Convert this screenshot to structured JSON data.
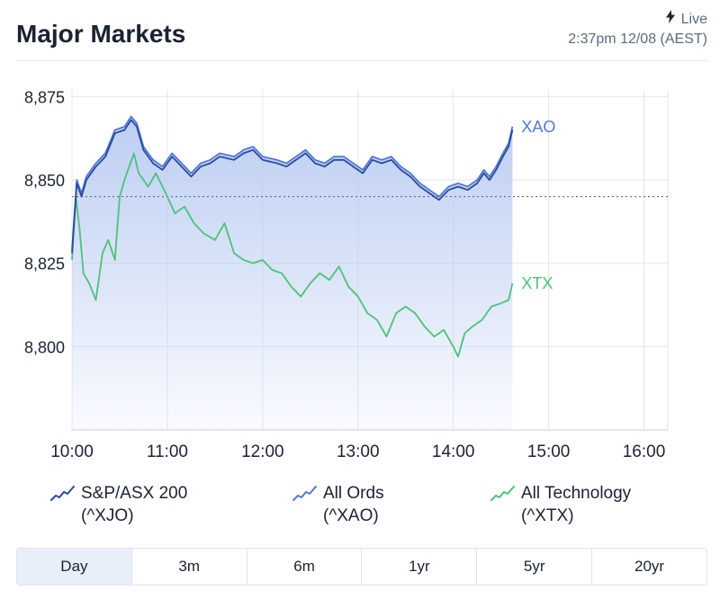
{
  "header": {
    "title": "Major Markets",
    "live_label": "Live",
    "timestamp": "2:37pm 12/08 (AEST)"
  },
  "colors": {
    "xjo": "#2a4a9a",
    "xao": "#4f78d8",
    "xtx": "#4cc27a",
    "fill_top": "#b9cbf2",
    "grid": "#e3e6eb"
  },
  "legend": [
    {
      "name": "S&P/ASX 200",
      "code": "(^XJO)",
      "icon": "line-chart-icon",
      "color_key": "xjo"
    },
    {
      "name": "All Ords",
      "code": "(^XAO)",
      "icon": "line-chart-icon",
      "color_key": "xao"
    },
    {
      "name": "All Technology",
      "code": "(^XTX)",
      "icon": "line-chart-icon",
      "color_key": "xtx"
    }
  ],
  "tabs": [
    {
      "label": "Day",
      "active": true
    },
    {
      "label": "3m",
      "active": false
    },
    {
      "label": "6m",
      "active": false
    },
    {
      "label": "1yr",
      "active": false
    },
    {
      "label": "5yr",
      "active": false
    },
    {
      "label": "20yr",
      "active": false
    }
  ],
  "chart_data": {
    "type": "line",
    "x_ticks": [
      "10:00",
      "11:00",
      "12:00",
      "13:00",
      "14:00",
      "15:00",
      "16:00"
    ],
    "xlim": [
      10.0,
      16.25
    ],
    "y_ticks": [
      "8,875",
      "8,850",
      "8,825",
      "8,800"
    ],
    "ylim": [
      8775,
      8877
    ],
    "reference_line": 8845,
    "grid": true,
    "series": [
      {
        "name": "XAO",
        "color_key": "xao",
        "end_label": "XAO",
        "filled": true,
        "points": [
          [
            10.0,
            8829
          ],
          [
            10.05,
            8850
          ],
          [
            10.1,
            8846
          ],
          [
            10.15,
            8851
          ],
          [
            10.25,
            8855
          ],
          [
            10.35,
            8858
          ],
          [
            10.45,
            8865
          ],
          [
            10.55,
            8866
          ],
          [
            10.62,
            8869
          ],
          [
            10.68,
            8867
          ],
          [
            10.75,
            8860
          ],
          [
            10.85,
            8856
          ],
          [
            10.95,
            8854
          ],
          [
            11.05,
            8858
          ],
          [
            11.15,
            8855
          ],
          [
            11.25,
            8852
          ],
          [
            11.35,
            8855
          ],
          [
            11.45,
            8856
          ],
          [
            11.55,
            8858
          ],
          [
            11.7,
            8857
          ],
          [
            11.8,
            8859
          ],
          [
            11.9,
            8860
          ],
          [
            12.0,
            8857
          ],
          [
            12.15,
            8856
          ],
          [
            12.25,
            8855
          ],
          [
            12.35,
            8857
          ],
          [
            12.45,
            8859
          ],
          [
            12.55,
            8856
          ],
          [
            12.65,
            8855
          ],
          [
            12.75,
            8857
          ],
          [
            12.85,
            8857
          ],
          [
            12.95,
            8855
          ],
          [
            13.05,
            8853
          ],
          [
            13.15,
            8857
          ],
          [
            13.25,
            8856
          ],
          [
            13.35,
            8857
          ],
          [
            13.45,
            8854
          ],
          [
            13.55,
            8852
          ],
          [
            13.65,
            8849
          ],
          [
            13.75,
            8847
          ],
          [
            13.85,
            8845
          ],
          [
            13.95,
            8848
          ],
          [
            14.05,
            8849
          ],
          [
            14.15,
            8848
          ],
          [
            14.25,
            8850
          ],
          [
            14.32,
            8853
          ],
          [
            14.38,
            8851
          ],
          [
            14.45,
            8854
          ],
          [
            14.52,
            8858
          ],
          [
            14.58,
            8861
          ],
          [
            14.62,
            8866
          ]
        ]
      },
      {
        "name": "XJO",
        "color_key": "xjo",
        "end_label": "",
        "filled": false,
        "points": [
          [
            10.0,
            8828
          ],
          [
            10.05,
            8849
          ],
          [
            10.1,
            8845
          ],
          [
            10.15,
            8850
          ],
          [
            10.25,
            8854
          ],
          [
            10.35,
            8857
          ],
          [
            10.45,
            8864
          ],
          [
            10.55,
            8865
          ],
          [
            10.62,
            8868
          ],
          [
            10.68,
            8866
          ],
          [
            10.75,
            8859
          ],
          [
            10.85,
            8855
          ],
          [
            10.95,
            8853
          ],
          [
            11.05,
            8857
          ],
          [
            11.15,
            8854
          ],
          [
            11.25,
            8851
          ],
          [
            11.35,
            8854
          ],
          [
            11.45,
            8855
          ],
          [
            11.55,
            8857
          ],
          [
            11.7,
            8856
          ],
          [
            11.8,
            8858
          ],
          [
            11.9,
            8859
          ],
          [
            12.0,
            8856
          ],
          [
            12.15,
            8855
          ],
          [
            12.25,
            8854
          ],
          [
            12.35,
            8856
          ],
          [
            12.45,
            8858
          ],
          [
            12.55,
            8855
          ],
          [
            12.65,
            8854
          ],
          [
            12.75,
            8856
          ],
          [
            12.85,
            8856
          ],
          [
            12.95,
            8854
          ],
          [
            13.05,
            8852
          ],
          [
            13.15,
            8856
          ],
          [
            13.25,
            8855
          ],
          [
            13.35,
            8856
          ],
          [
            13.45,
            8853
          ],
          [
            13.55,
            8851
          ],
          [
            13.65,
            8848
          ],
          [
            13.75,
            8846
          ],
          [
            13.85,
            8844
          ],
          [
            13.95,
            8847
          ],
          [
            14.05,
            8848
          ],
          [
            14.15,
            8847
          ],
          [
            14.25,
            8849
          ],
          [
            14.32,
            8852
          ],
          [
            14.38,
            8850
          ],
          [
            14.45,
            8853
          ],
          [
            14.52,
            8857
          ],
          [
            14.58,
            8860
          ],
          [
            14.62,
            8865
          ]
        ]
      },
      {
        "name": "XTX",
        "color_key": "xtx",
        "end_label": "XTX",
        "filled": false,
        "points": [
          [
            10.0,
            8826
          ],
          [
            10.04,
            8845
          ],
          [
            10.08,
            8835
          ],
          [
            10.12,
            8822
          ],
          [
            10.18,
            8819
          ],
          [
            10.25,
            8814
          ],
          [
            10.32,
            8828
          ],
          [
            10.38,
            8832
          ],
          [
            10.45,
            8826
          ],
          [
            10.5,
            8845
          ],
          [
            10.55,
            8850
          ],
          [
            10.6,
            8854
          ],
          [
            10.65,
            8858
          ],
          [
            10.7,
            8852
          ],
          [
            10.8,
            8848
          ],
          [
            10.88,
            8852
          ],
          [
            10.95,
            8848
          ],
          [
            11.0,
            8845
          ],
          [
            11.08,
            8840
          ],
          [
            11.18,
            8842
          ],
          [
            11.28,
            8837
          ],
          [
            11.38,
            8834
          ],
          [
            11.5,
            8832
          ],
          [
            11.6,
            8837
          ],
          [
            11.7,
            8828
          ],
          [
            11.8,
            8826
          ],
          [
            11.9,
            8825
          ],
          [
            12.0,
            8826
          ],
          [
            12.1,
            8823
          ],
          [
            12.2,
            8822
          ],
          [
            12.3,
            8818
          ],
          [
            12.4,
            8815
          ],
          [
            12.5,
            8819
          ],
          [
            12.6,
            8822
          ],
          [
            12.7,
            8820
          ],
          [
            12.8,
            8824
          ],
          [
            12.9,
            8818
          ],
          [
            13.0,
            8815
          ],
          [
            13.1,
            8810
          ],
          [
            13.2,
            8808
          ],
          [
            13.3,
            8803
          ],
          [
            13.4,
            8810
          ],
          [
            13.5,
            8812
          ],
          [
            13.6,
            8810
          ],
          [
            13.7,
            8806
          ],
          [
            13.8,
            8803
          ],
          [
            13.9,
            8805
          ],
          [
            14.0,
            8800
          ],
          [
            14.05,
            8797
          ],
          [
            14.12,
            8804
          ],
          [
            14.2,
            8806
          ],
          [
            14.3,
            8808
          ],
          [
            14.4,
            8812
          ],
          [
            14.5,
            8813
          ],
          [
            14.58,
            8814
          ],
          [
            14.62,
            8819
          ]
        ]
      }
    ]
  }
}
